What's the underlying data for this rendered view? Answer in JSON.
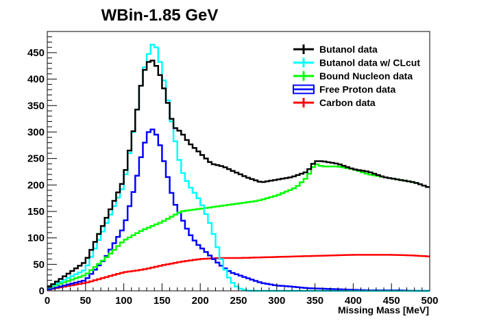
{
  "chart_data": {
    "type": "line",
    "title": "WBin-1.85 GeV",
    "xlabel": "Missing Mass [MeV]",
    "ylabel": "",
    "xlim": [
      0,
      500
    ],
    "ylim": [
      0,
      490
    ],
    "xticks": [
      "0",
      "50",
      "100",
      "150",
      "200",
      "250",
      "300",
      "350",
      "400",
      "450",
      "500"
    ],
    "yticks": [
      "0",
      "50",
      "100",
      "150",
      "200",
      "250",
      "300",
      "350",
      "400",
      "450"
    ],
    "grid": false,
    "legend_position": "top-right",
    "bin_width": 5,
    "series": [
      {
        "name": "Butanol data",
        "color": "#000000",
        "x": [
          0,
          50,
          75,
          100,
          115,
          125,
          135,
          145,
          155,
          165,
          175,
          185,
          200,
          215,
          230,
          245,
          260,
          280,
          300,
          320,
          340,
          350,
          360,
          380,
          400,
          420,
          440,
          460,
          480,
          500
        ],
        "values": [
          5,
          55,
          130,
          210,
          320,
          410,
          440,
          420,
          370,
          310,
          300,
          280,
          260,
          240,
          235,
          225,
          215,
          205,
          210,
          215,
          225,
          245,
          245,
          240,
          230,
          225,
          215,
          210,
          205,
          195
        ]
      },
      {
        "name": "Butanol data w/ CLcut",
        "color": "#00ffff",
        "x": [
          0,
          50,
          75,
          100,
          115,
          125,
          135,
          140,
          145,
          155,
          165,
          175,
          185,
          200,
          215,
          225,
          235,
          245,
          255,
          265,
          300,
          350,
          400,
          450,
          500
        ],
        "values": [
          5,
          40,
          120,
          200,
          320,
          410,
          460,
          470,
          450,
          380,
          300,
          230,
          200,
          170,
          120,
          70,
          30,
          10,
          2,
          0,
          0,
          0,
          0,
          0,
          0
        ]
      },
      {
        "name": "Bound Nucleon data",
        "color": "#00ff00",
        "x": [
          0,
          50,
          75,
          100,
          125,
          150,
          175,
          200,
          225,
          250,
          275,
          300,
          325,
          340,
          350,
          360,
          380,
          400,
          420,
          440,
          460,
          480,
          500
        ],
        "values": [
          5,
          30,
          60,
          95,
          115,
          130,
          150,
          155,
          160,
          165,
          170,
          180,
          195,
          215,
          240,
          235,
          235,
          230,
          220,
          215,
          210,
          205,
          195
        ]
      },
      {
        "name": "Free Proton data",
        "color": "#0000ff",
        "x": [
          0,
          50,
          75,
          100,
          115,
          125,
          135,
          145,
          155,
          165,
          175,
          185,
          195,
          210,
          225,
          240,
          260,
          280,
          300,
          320,
          340,
          360,
          380,
          400,
          420,
          440,
          460,
          480,
          500
        ],
        "values": [
          2,
          20,
          60,
          120,
          200,
          270,
          310,
          290,
          230,
          170,
          140,
          110,
          90,
          70,
          50,
          35,
          25,
          15,
          10,
          8,
          5,
          4,
          3,
          2,
          1,
          1,
          1,
          0,
          0
        ]
      },
      {
        "name": "Carbon data",
        "color": "#ff0000",
        "x": [
          0,
          50,
          75,
          100,
          125,
          150,
          175,
          200,
          225,
          250,
          275,
          300,
          325,
          350,
          375,
          400,
          425,
          450,
          475,
          500
        ],
        "values": [
          2,
          15,
          25,
          35,
          40,
          48,
          55,
          60,
          62,
          62,
          63,
          64,
          65,
          66,
          67,
          68,
          68,
          68,
          67,
          65
        ]
      }
    ]
  }
}
